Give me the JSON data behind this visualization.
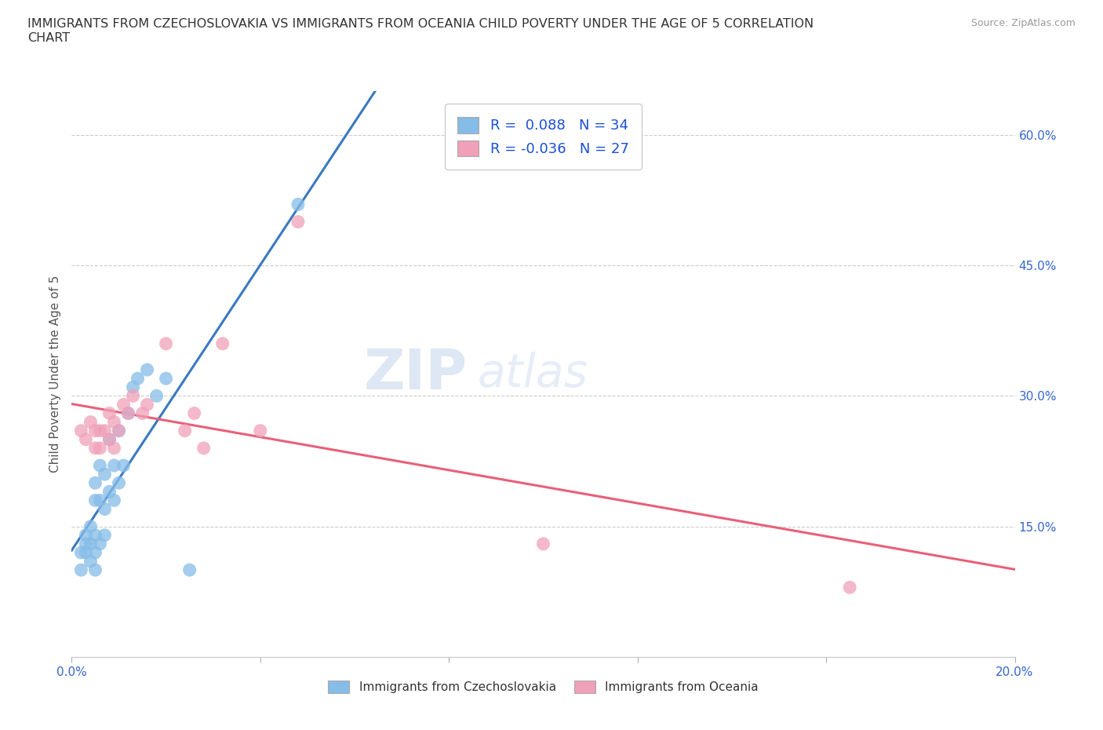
{
  "title": "IMMIGRANTS FROM CZECHOSLOVAKIA VS IMMIGRANTS FROM OCEANIA CHILD POVERTY UNDER THE AGE OF 5 CORRELATION\nCHART",
  "source_text": "Source: ZipAtlas.com",
  "ylabel": "Child Poverty Under the Age of 5",
  "xlim": [
    0.0,
    0.2
  ],
  "ylim": [
    0.0,
    0.65
  ],
  "yticks_right": [
    0.15,
    0.3,
    0.45,
    0.6
  ],
  "ytick_labels_right": [
    "15.0%",
    "30.0%",
    "45.0%",
    "60.0%"
  ],
  "background_color": "#ffffff",
  "watermark_zip": "ZIP",
  "watermark_atlas": "atlas",
  "R_czech": 0.088,
  "N_czech": 34,
  "R_oceania": -0.036,
  "N_oceania": 27,
  "legend_box_text_color": "#1a4fd6",
  "scatter_blue_color": "#85bce8",
  "scatter_pink_color": "#f0a0b8",
  "line_blue_solid_color": "#3a7abf",
  "line_blue_dash_color": "#8ab8d8",
  "line_pink_color": "#e8607a",
  "grid_color": "#cccccc",
  "czech_x": [
    0.002,
    0.002,
    0.003,
    0.003,
    0.003,
    0.004,
    0.004,
    0.004,
    0.005,
    0.005,
    0.005,
    0.005,
    0.005,
    0.006,
    0.006,
    0.006,
    0.007,
    0.007,
    0.007,
    0.008,
    0.008,
    0.009,
    0.009,
    0.01,
    0.01,
    0.011,
    0.012,
    0.013,
    0.014,
    0.016,
    0.018,
    0.02,
    0.025,
    0.048
  ],
  "czech_y": [
    0.1,
    0.12,
    0.12,
    0.13,
    0.14,
    0.11,
    0.13,
    0.15,
    0.1,
    0.12,
    0.14,
    0.18,
    0.2,
    0.13,
    0.18,
    0.22,
    0.14,
    0.17,
    0.21,
    0.19,
    0.25,
    0.18,
    0.22,
    0.2,
    0.26,
    0.22,
    0.28,
    0.31,
    0.32,
    0.33,
    0.3,
    0.32,
    0.1,
    0.52
  ],
  "oceania_x": [
    0.002,
    0.003,
    0.004,
    0.005,
    0.005,
    0.006,
    0.006,
    0.007,
    0.008,
    0.008,
    0.009,
    0.009,
    0.01,
    0.011,
    0.012,
    0.013,
    0.015,
    0.016,
    0.02,
    0.024,
    0.026,
    0.028,
    0.032,
    0.04,
    0.048,
    0.1,
    0.165
  ],
  "oceania_y": [
    0.26,
    0.25,
    0.27,
    0.24,
    0.26,
    0.24,
    0.26,
    0.26,
    0.25,
    0.28,
    0.24,
    0.27,
    0.26,
    0.29,
    0.28,
    0.3,
    0.28,
    0.29,
    0.36,
    0.26,
    0.28,
    0.24,
    0.36,
    0.26,
    0.5,
    0.13,
    0.08
  ]
}
